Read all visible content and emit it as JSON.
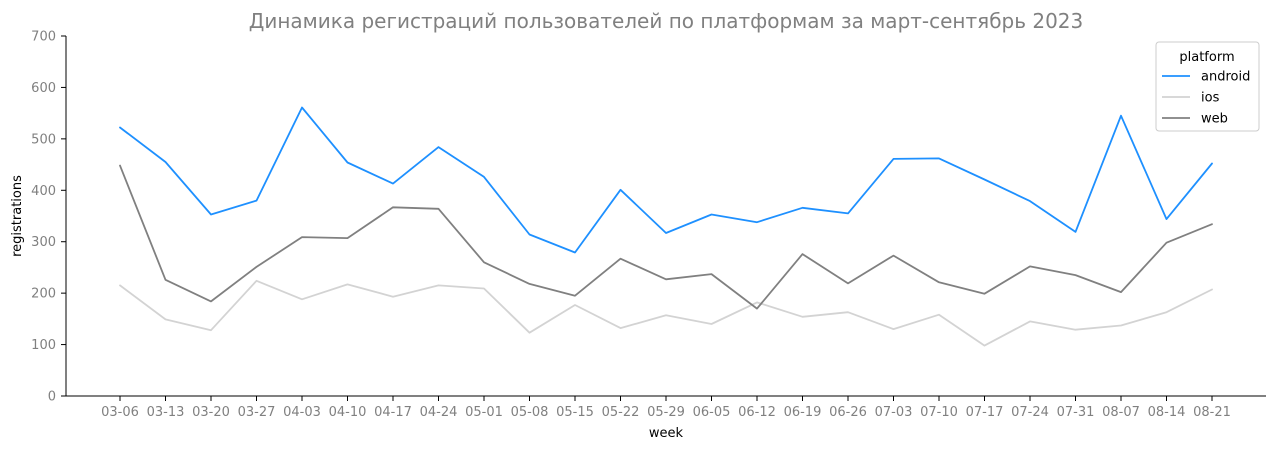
{
  "chart_data": {
    "type": "line",
    "title": "Динамика регистраций пользователей по платформам за март-сентябрь 2023",
    "xlabel": "week",
    "ylabel": "registrations",
    "ylim": [
      0,
      700
    ],
    "yticks": [
      "0",
      "100",
      "200",
      "300",
      "400",
      "500",
      "600",
      "700"
    ],
    "categories": [
      "03-06",
      "03-13",
      "03-20",
      "03-27",
      "04-03",
      "04-10",
      "04-17",
      "04-24",
      "05-01",
      "05-08",
      "05-15",
      "05-22",
      "05-29",
      "06-05",
      "06-12",
      "06-19",
      "06-26",
      "07-03",
      "07-10",
      "07-17",
      "07-24",
      "07-31",
      "08-07",
      "08-14",
      "08-21"
    ],
    "legend": {
      "title": "platform",
      "position": "top-right"
    },
    "grid": false,
    "series": [
      {
        "name": "android",
        "color": "#1E90FF",
        "values": [
          522,
          455,
          353,
          380,
          561,
          454,
          413,
          484,
          426,
          314,
          279,
          401,
          317,
          353,
          338,
          366,
          355,
          461,
          462,
          421,
          379,
          319,
          545,
          344,
          452
        ]
      },
      {
        "name": "ios",
        "color": "#D3D3D3",
        "values": [
          215,
          149,
          128,
          224,
          188,
          217,
          193,
          215,
          209,
          123,
          177,
          132,
          157,
          140,
          182,
          154,
          163,
          130,
          158,
          98,
          145,
          129,
          137,
          163,
          207
        ]
      },
      {
        "name": "web",
        "color": "#808080",
        "values": [
          448,
          226,
          184,
          251,
          309,
          307,
          367,
          364,
          260,
          218,
          195,
          267,
          227,
          237,
          170,
          276,
          219,
          273,
          221,
          199,
          252,
          235,
          202,
          298,
          334
        ]
      }
    ]
  }
}
